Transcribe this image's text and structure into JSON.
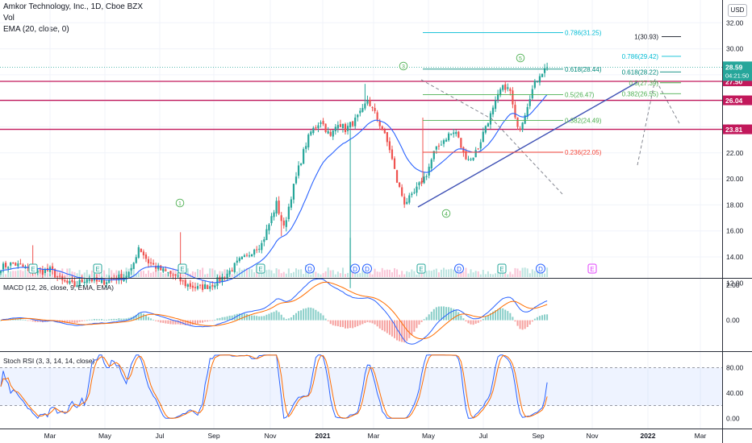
{
  "header": {
    "title": "Amkor Technology, Inc., 1D, Cboe BZX",
    "vol_label": "Vol",
    "ema_label": "EMA (20, close, 0)",
    "currency_button": "USD"
  },
  "colors": {
    "up": "#26a69a",
    "down": "#ef5350",
    "ema": "#2962ff",
    "macd": "#2962ff",
    "signal": "#ff6d00",
    "k": "#2962ff",
    "d": "#ff6d00",
    "hline": "#c2185b",
    "trend": "#3f51b5",
    "fib_green": "#4caf50",
    "fib_blue": "#00bcd4",
    "fib_red": "#f44336"
  },
  "chart_data": [
    {
      "type": "candlestick",
      "title": "Amkor Technology, Inc., 1D, Cboe BZX",
      "ylim": [
        11.2,
        33.4
      ],
      "y_ticks": [
        "32.00",
        "30.00",
        "28.00",
        "26.00",
        "24.00",
        "22.00",
        "20.00",
        "18.00",
        "16.00",
        "14.00",
        "12.00"
      ],
      "x_ticks": [
        "Mar",
        "May",
        "Jul",
        "Sep",
        "Nov",
        "2021",
        "Mar",
        "May",
        "Jul",
        "Sep",
        "Nov",
        "2022",
        "Mar"
      ],
      "price_anchors": [
        [
          0,
          13.2
        ],
        [
          5,
          13.5
        ],
        [
          15,
          12.8
        ],
        [
          20,
          13.0
        ],
        [
          25,
          12.1
        ],
        [
          30,
          11.8
        ],
        [
          35,
          12.4
        ],
        [
          40,
          12.0
        ],
        [
          45,
          12.3
        ],
        [
          50,
          12.5
        ],
        [
          53,
          12.9
        ],
        [
          56,
          14.8
        ],
        [
          60,
          13.6
        ],
        [
          65,
          13.0
        ],
        [
          70,
          12.6
        ],
        [
          75,
          11.9
        ],
        [
          80,
          11.6
        ],
        [
          85,
          11.8
        ],
        [
          90,
          12.4
        ],
        [
          93,
          12.9
        ],
        [
          97,
          13.7
        ],
        [
          100,
          14.0
        ],
        [
          103,
          14.7
        ],
        [
          106,
          15.0
        ],
        [
          109,
          16.5
        ],
        [
          112,
          18.1
        ],
        [
          115,
          16.2
        ],
        [
          118,
          18.7
        ],
        [
          121,
          20.8
        ],
        [
          124,
          22.7
        ],
        [
          126,
          23.6
        ],
        [
          130,
          24.5
        ],
        [
          134,
          23.2
        ],
        [
          137,
          24.4
        ],
        [
          140,
          23.8
        ],
        [
          144,
          24.5
        ],
        [
          147,
          25.2
        ],
        [
          149,
          26.1
        ],
        [
          152,
          25.0
        ],
        [
          155,
          23.8
        ],
        [
          158,
          22.3
        ],
        [
          161,
          19.8
        ],
        [
          164,
          18.2
        ],
        [
          167,
          18.6
        ],
        [
          170,
          19.5
        ],
        [
          173,
          20.4
        ],
        [
          176,
          22.0
        ],
        [
          179,
          22.8
        ],
        [
          182,
          23.4
        ],
        [
          185,
          23.6
        ],
        [
          188,
          21.9
        ],
        [
          191,
          21.5
        ],
        [
          194,
          22.4
        ],
        [
          197,
          24.1
        ],
        [
          200,
          25.3
        ],
        [
          203,
          26.8
        ],
        [
          205,
          27.1
        ],
        [
          207,
          26.7
        ],
        [
          209,
          24.5
        ],
        [
          211,
          24.0
        ],
        [
          213,
          25.1
        ],
        [
          215,
          26.4
        ],
        [
          217,
          27.3
        ],
        [
          219,
          28.1
        ],
        [
          221,
          28.4
        ],
        [
          222,
          28.6
        ]
      ],
      "ema_period": 20,
      "volume_events": [
        "E",
        "E",
        "E",
        "E",
        "D",
        "D",
        "D",
        "E",
        "D",
        "E",
        "D",
        "E"
      ],
      "horizontal_levels": [
        {
          "value": 27.5,
          "label": "27.50"
        },
        {
          "value": 26.04,
          "label": "26.04"
        },
        {
          "value": 23.81,
          "label": "23.81"
        }
      ],
      "last_price": {
        "value": 28.59,
        "label": "28.59",
        "countdown": "04:21:50"
      },
      "fib_left": [
        {
          "label": "0.786(31.25)",
          "value": 31.25,
          "color": "#00bcd4"
        },
        {
          "label": "0.618(28.44)",
          "value": 28.44,
          "color": "#00897b"
        },
        {
          "label": "0.5(26.47)",
          "value": 26.47,
          "color": "#4caf50"
        },
        {
          "label": "0.382(24.49)",
          "value": 24.49,
          "color": "#4caf50"
        },
        {
          "label": "0.236(22.05)",
          "value": 22.05,
          "color": "#f44336"
        }
      ],
      "fib_right": [
        {
          "label": "1(30.93)",
          "value": 30.93,
          "color": "#131722"
        },
        {
          "label": "0.786(29.42)",
          "value": 29.42,
          "color": "#00bcd4"
        },
        {
          "label": "0.618(28.22)",
          "value": 28.22,
          "color": "#00897b"
        },
        {
          "label": "0.5(27.39)",
          "value": 27.39,
          "color": "#4caf50"
        },
        {
          "label": "0.382(26.55)",
          "value": 26.55,
          "color": "#4caf50"
        }
      ],
      "wave_labels": [
        "1",
        "3",
        "4",
        "5"
      ]
    },
    {
      "type": "line",
      "title": "MACD (12, 26, close, 9, EMA, EMA)",
      "ylim": [
        -2.0,
        2.1
      ],
      "y_ticks": [
        "2.00",
        "0.00"
      ],
      "series": [
        {
          "name": "MACD"
        },
        {
          "name": "Signal"
        },
        {
          "name": "Histogram"
        }
      ]
    },
    {
      "type": "line",
      "title": "Stoch RSI (3, 3, 14, 14, close)",
      "ylim": [
        -8,
        110
      ],
      "y_ticks": [
        "80.00",
        "40.00",
        "0.00"
      ],
      "band": [
        20,
        80
      ],
      "series": [
        {
          "name": "K"
        },
        {
          "name": "D"
        }
      ]
    }
  ]
}
